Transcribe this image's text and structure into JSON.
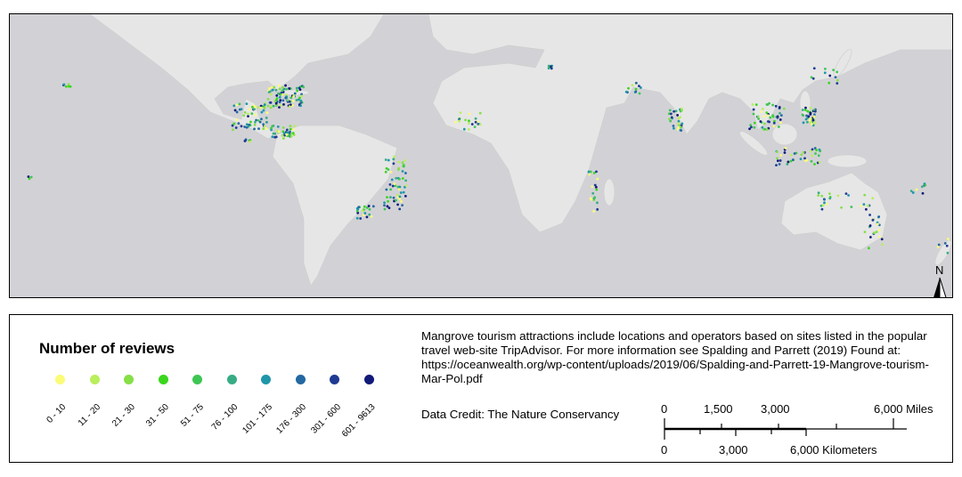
{
  "map": {
    "north_label": "N",
    "colors": {
      "ocean": "#d2d2d6",
      "land": "#e6e6e6"
    }
  },
  "legend": {
    "title": "Number of reviews",
    "classes": [
      {
        "label": "0 - 10",
        "color": "#fbfb78"
      },
      {
        "label": "11 - 20",
        "color": "#b9ee5c"
      },
      {
        "label": "21 - 30",
        "color": "#86df46"
      },
      {
        "label": "31 - 50",
        "color": "#3ad61c"
      },
      {
        "label": "51 - 75",
        "color": "#3ec653"
      },
      {
        "label": "76 - 100",
        "color": "#38ac84"
      },
      {
        "label": "101 - 175",
        "color": "#1f96aa"
      },
      {
        "label": "176 - 300",
        "color": "#2468a2"
      },
      {
        "label": "301 - 600",
        "color": "#1f3a92"
      },
      {
        "label": "601 - 9613",
        "color": "#111a78"
      }
    ]
  },
  "description": "Mangrove tourism attractions include locations and operators based on sites listed in the popular travel web-site TripAdvisor. For more information see Spalding and Parrett (2019) Found at: https://oceanwealth.org/wp-content/uploads/2019/06/Spalding-and-Parrett-19-Mangrove-tourism-Mar-Pol.pdf",
  "credit": "Data Credit: The Nature Conservancy",
  "scalebar": {
    "miles": [
      "0",
      "1,500",
      "3,000",
      "6,000 Miles"
    ],
    "km": [
      "0",
      "3,000",
      "6,000 Kilometers"
    ]
  }
}
